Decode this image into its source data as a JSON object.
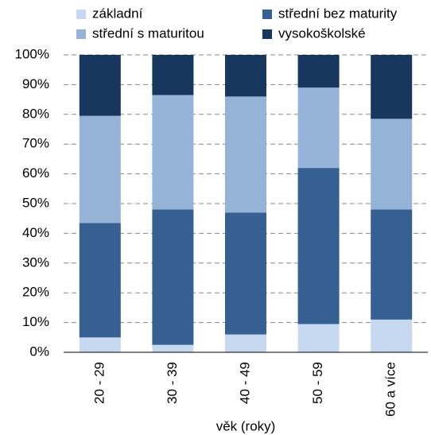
{
  "chart_data": {
    "type": "stacked_bar",
    "x_label": "věk (roky)",
    "categories": [
      "20 - 29",
      "30 - 39",
      "40 - 49",
      "50 - 59",
      "60 a více"
    ],
    "series": [
      {
        "name": "základní",
        "color": "#c6d9f1",
        "values": [
          5,
          2.5,
          6,
          9.5,
          11
        ]
      },
      {
        "name": "střední bez maturity",
        "color": "#376092",
        "values": [
          38.5,
          45.5,
          41,
          52.5,
          37
        ]
      },
      {
        "name": "střední s maturitou",
        "color": "#95b3d7",
        "values": [
          36,
          38.5,
          39,
          27,
          30.5
        ]
      },
      {
        "name": "vysokoškolské",
        "color": "#17375e",
        "values": [
          20.5,
          13.5,
          14,
          11,
          21.5
        ]
      }
    ],
    "ylim": [
      0,
      100
    ],
    "yticks": [
      {
        "value": 0,
        "label": "0%"
      },
      {
        "value": 10,
        "label": "10%"
      },
      {
        "value": 20,
        "label": "20%"
      },
      {
        "value": 30,
        "label": "30%"
      },
      {
        "value": 40,
        "label": "40%"
      },
      {
        "value": 50,
        "label": "50%"
      },
      {
        "value": 60,
        "label": "60%"
      },
      {
        "value": 70,
        "label": "70%"
      },
      {
        "value": 80,
        "label": "80%"
      },
      {
        "value": 90,
        "label": "90%"
      },
      {
        "value": 100,
        "label": "100%"
      }
    ],
    "grid": true,
    "legend": "top"
  }
}
